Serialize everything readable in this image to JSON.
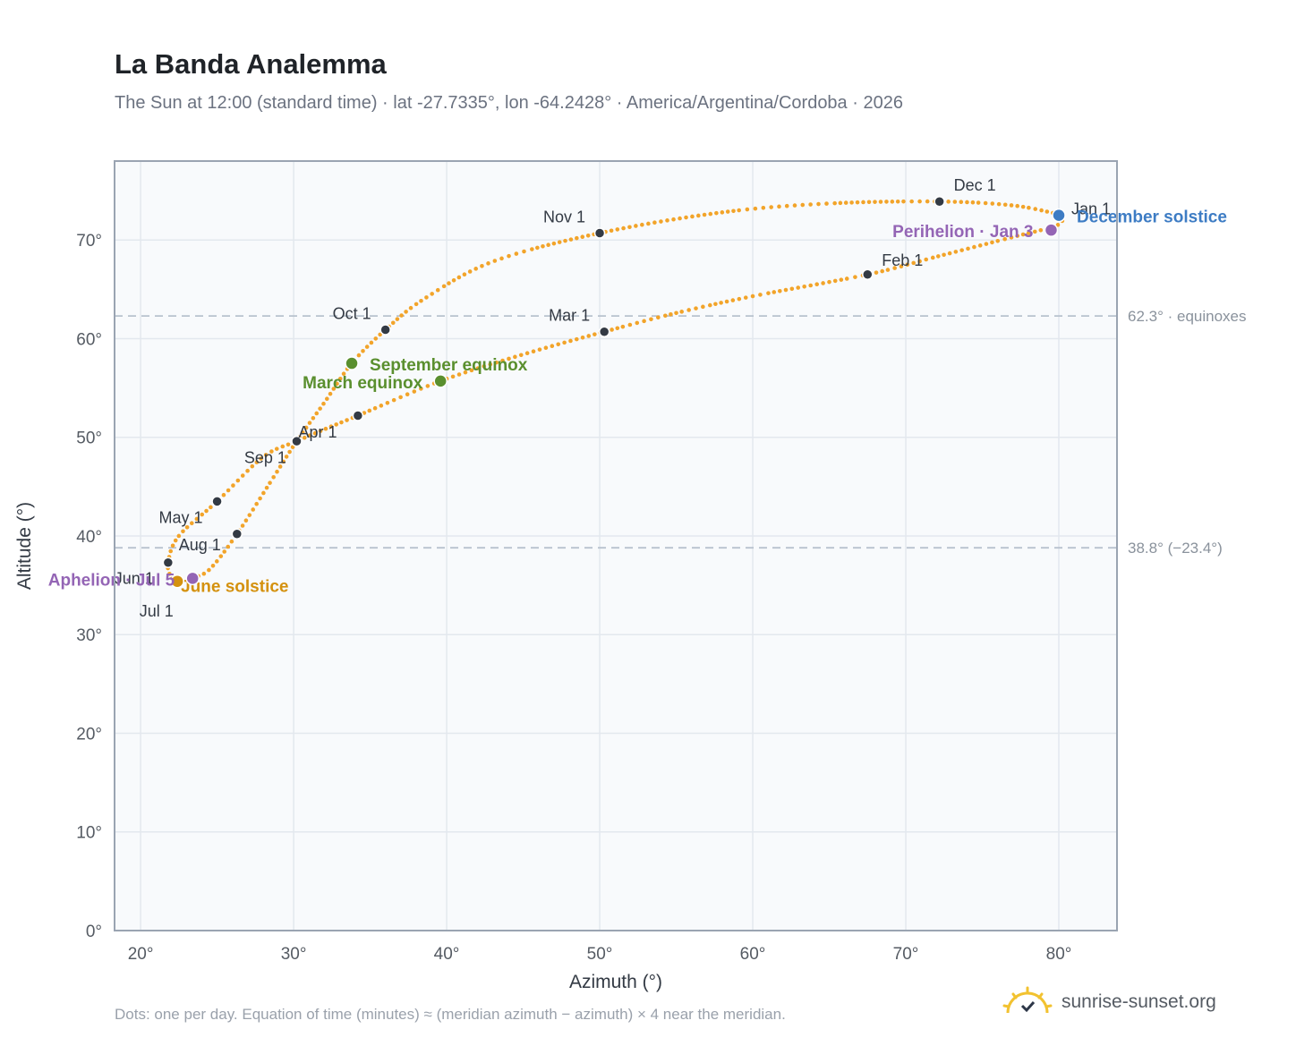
{
  "header": {
    "title": "La Banda Analemma",
    "subtitle": "The Sun at 12:00 (standard time) · lat -27.7335°, lon -64.2428° · America/Argentina/Cordoba · 2026"
  },
  "footer": {
    "note": "Dots: one per day. Equation of time (minutes) ≈ (meridian azimuth − azimuth) × 4 near the meridian.",
    "brand": "sunrise-sunset.org"
  },
  "colors": {
    "path": "#f2a42a",
    "month_marker": "#333a44",
    "equinox": "#5a8f2e",
    "june_solstice": "#d4910e",
    "december_solstice": "#3d7cc4",
    "apsis": "#9465b5",
    "plot_bg": "#f8fafc",
    "grid": "#e3e8ee",
    "frame": "#9aa4b2",
    "reference_line": "#b8c2ce"
  },
  "chart_data": {
    "type": "scatter",
    "xlabel": "Azimuth (°)",
    "ylabel": "Altitude (°)",
    "xlim": [
      18.3,
      83.8
    ],
    "ylim": [
      0,
      78
    ],
    "xticks": [
      20,
      30,
      40,
      50,
      60,
      70,
      80
    ],
    "yticks": [
      0,
      10,
      20,
      30,
      40,
      50,
      60,
      70
    ],
    "tick_suffix": "°",
    "grid": true,
    "reference_lines": [
      {
        "y": 62.3,
        "label": "62.3° · equinoxes"
      },
      {
        "y": 38.8,
        "label": "38.8° (−23.4°)"
      }
    ],
    "series_note": "one dot per day",
    "path_points": [
      [
        80.2,
        72.5
      ],
      [
        79.9,
        71.5
      ],
      [
        77.0,
        70.3
      ],
      [
        72.0,
        68.3
      ],
      [
        67.5,
        66.5
      ],
      [
        60.0,
        64.3
      ],
      [
        55.0,
        62.6
      ],
      [
        50.3,
        60.7
      ],
      [
        45.0,
        58.4
      ],
      [
        39.6,
        55.7
      ],
      [
        34.2,
        52.2
      ],
      [
        32.0,
        50.8
      ],
      [
        30.2,
        49.6
      ],
      [
        28.0,
        48.0
      ],
      [
        25.0,
        43.5
      ],
      [
        22.5,
        40.0
      ],
      [
        21.8,
        37.3
      ],
      [
        22.0,
        35.8
      ],
      [
        22.4,
        35.4
      ],
      [
        23.0,
        35.4
      ],
      [
        23.3,
        35.7
      ],
      [
        24.5,
        36.6
      ],
      [
        26.3,
        40.2
      ],
      [
        28.5,
        45.5
      ],
      [
        30.2,
        49.6
      ],
      [
        32.0,
        53.5
      ],
      [
        33.8,
        57.5
      ],
      [
        36.0,
        60.9
      ],
      [
        38.5,
        64.0
      ],
      [
        43.0,
        67.8
      ],
      [
        50.0,
        70.7
      ],
      [
        58.0,
        72.8
      ],
      [
        65.0,
        73.7
      ],
      [
        72.2,
        73.9
      ],
      [
        77.0,
        73.5
      ],
      [
        80.0,
        72.6
      ]
    ],
    "month_markers": [
      {
        "label": "Jan 1",
        "az": 80.0,
        "alt": 72.4
      },
      {
        "label": "Feb 1",
        "az": 67.5,
        "alt": 66.5
      },
      {
        "label": "Mar 1",
        "az": 50.3,
        "alt": 60.7
      },
      {
        "label": "Apr 1",
        "az": 30.2,
        "alt": 49.6
      },
      {
        "label": "May 1",
        "az": 25.0,
        "alt": 43.5
      },
      {
        "label": "Jun 1",
        "az": 21.8,
        "alt": 37.3
      },
      {
        "label": "Jul 1",
        "az": 22.5,
        "alt": 35.3
      },
      {
        "label": "Aug 1",
        "az": 26.3,
        "alt": 40.2
      },
      {
        "label": "Sep 1",
        "az": 34.2,
        "alt": 52.2
      },
      {
        "label": "Oct 1",
        "az": 36.0,
        "alt": 60.9
      },
      {
        "label": "Nov 1",
        "az": 50.0,
        "alt": 70.7
      },
      {
        "label": "Dec 1",
        "az": 72.2,
        "alt": 73.9
      }
    ],
    "events": [
      {
        "label": "March equinox",
        "az": 39.6,
        "alt": 55.7,
        "color": "equinox"
      },
      {
        "label": "September equinox",
        "az": 33.8,
        "alt": 57.5,
        "color": "equinox"
      },
      {
        "label": "June solstice",
        "az": 22.4,
        "alt": 35.4,
        "color": "june_solstice"
      },
      {
        "label": "December solstice",
        "az": 80.0,
        "alt": 72.5,
        "color": "december_solstice"
      },
      {
        "label": "Aphelion · Jul 5",
        "az": 23.4,
        "alt": 35.7,
        "color": "apsis"
      },
      {
        "label": "Perihelion · Jan 3",
        "az": 79.5,
        "alt": 71.0,
        "color": "apsis"
      }
    ]
  }
}
